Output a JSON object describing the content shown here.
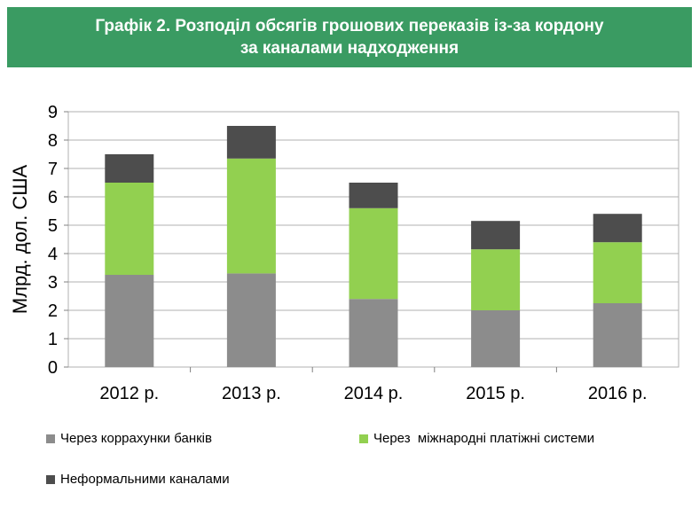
{
  "header": {
    "title_line1": "Графік 2. Розподіл обсягів грошових переказів із-за кордону",
    "title_line2": "за каналами надходження"
  },
  "colors": {
    "header_bg": "#3a9b62",
    "banks": "#8c8c8c",
    "payment_systems": "#92d050",
    "informal": "#4d4d4d"
  },
  "chart_data": {
    "type": "bar",
    "stacked": true,
    "categories": [
      "2012 р.",
      "2013 р.",
      "2014 р.",
      "2015 р.",
      "2016 р."
    ],
    "series": [
      {
        "name": "Через коррахунки банків",
        "values": [
          3.25,
          3.3,
          2.4,
          2.0,
          2.25
        ]
      },
      {
        "name": "Через  міжнародні платіжні системи",
        "values": [
          3.25,
          4.05,
          3.2,
          2.15,
          2.15
        ]
      },
      {
        "name": "Неформальними каналами",
        "values": [
          1.0,
          1.15,
          0.9,
          1.0,
          1.0
        ]
      }
    ],
    "ylabel": "Млрд. дол. США",
    "ylim": [
      0,
      9
    ],
    "yticks": [
      "0",
      "1",
      "2",
      "3",
      "4",
      "5",
      "6",
      "7",
      "8",
      "9"
    ],
    "grid": true,
    "legend_position": "bottom"
  }
}
